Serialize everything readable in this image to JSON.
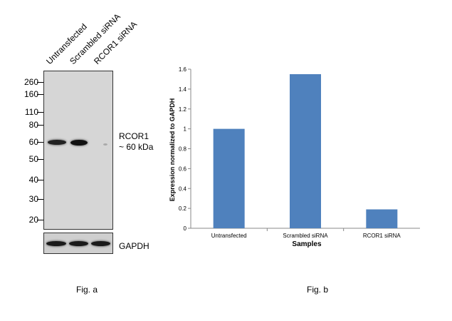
{
  "western_blot": {
    "lanes": [
      "Untransfected",
      "Scrambled siRNA",
      "RCOR1 siRNA"
    ],
    "markers": [
      "260",
      "160",
      "110",
      "80",
      "60",
      "50",
      "40",
      "30",
      "20"
    ],
    "target_label_line1": "RCOR1",
    "target_label_line2": "~ 60 kDa",
    "loading_control_label": "GAPDH",
    "caption": "Fig. a"
  },
  "chart_caption": "Fig. b",
  "chart_data": {
    "type": "bar",
    "categories": [
      "Untransfected",
      "Scrambled siRNA",
      "RCOR1 siRNA"
    ],
    "values": [
      1.0,
      1.55,
      0.19
    ],
    "title": "",
    "xlabel": "Samples",
    "ylabel": "Expression normalized to GAPDH",
    "ylim": [
      0,
      1.6
    ],
    "yticks": [
      "0",
      "0.2",
      "0.4",
      "0.6",
      "0.8",
      "1",
      "1.2",
      "1.4",
      "1.6"
    ],
    "bar_color": "#4f81bd",
    "grid": false
  }
}
